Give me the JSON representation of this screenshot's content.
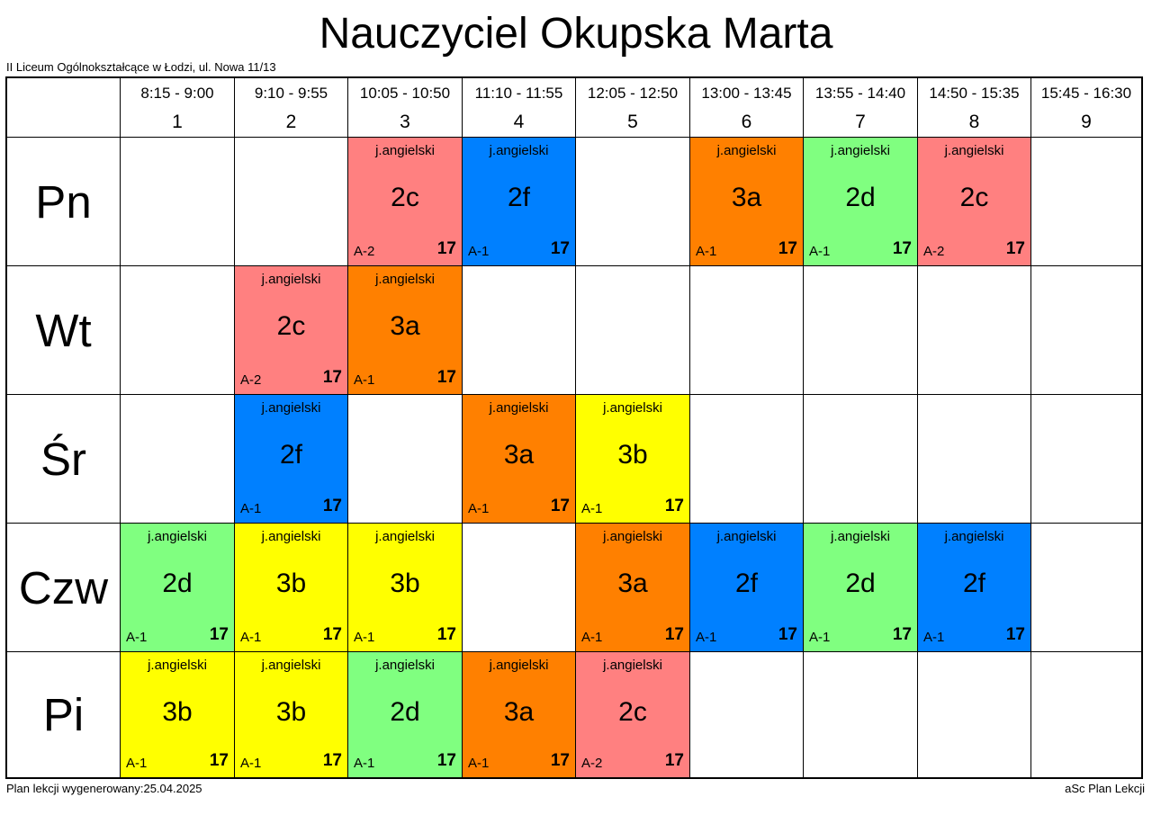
{
  "title": "Nauczyciel Okupska Marta",
  "school": "II Liceum Ogólnokształcące w Łodzi, ul. Nowa 11/13",
  "footer_left": "Plan lekcji wygenerowany:25.04.2025",
  "footer_right": "aSc Plan Lekcji",
  "colors": {
    "2c": "#ff8080",
    "2f": "#0080ff",
    "3a": "#ff8000",
    "2d": "#80ff80",
    "3b": "#ffff00"
  },
  "periods": [
    {
      "time": "8:15 - 9:00",
      "num": "1"
    },
    {
      "time": "9:10 - 9:55",
      "num": "2"
    },
    {
      "time": "10:05 - 10:50",
      "num": "3"
    },
    {
      "time": "11:10 - 11:55",
      "num": "4"
    },
    {
      "time": "12:05 - 12:50",
      "num": "5"
    },
    {
      "time": "13:00 - 13:45",
      "num": "6"
    },
    {
      "time": "13:55 - 14:40",
      "num": "7"
    },
    {
      "time": "14:50 - 15:35",
      "num": "8"
    },
    {
      "time": "15:45 - 16:30",
      "num": "9"
    }
  ],
  "days": [
    {
      "name": "Pn",
      "lessons": [
        null,
        null,
        {
          "subject": "j.angielski",
          "class": "2c",
          "room": "A-2",
          "number": "17"
        },
        {
          "subject": "j.angielski",
          "class": "2f",
          "room": "A-1",
          "number": "17"
        },
        null,
        {
          "subject": "j.angielski",
          "class": "3a",
          "room": "A-1",
          "number": "17"
        },
        {
          "subject": "j.angielski",
          "class": "2d",
          "room": "A-1",
          "number": "17"
        },
        {
          "subject": "j.angielski",
          "class": "2c",
          "room": "A-2",
          "number": "17"
        },
        null
      ]
    },
    {
      "name": "Wt",
      "lessons": [
        null,
        {
          "subject": "j.angielski",
          "class": "2c",
          "room": "A-2",
          "number": "17"
        },
        {
          "subject": "j.angielski",
          "class": "3a",
          "room": "A-1",
          "number": "17"
        },
        null,
        null,
        null,
        null,
        null,
        null
      ]
    },
    {
      "name": "Śr",
      "lessons": [
        null,
        {
          "subject": "j.angielski",
          "class": "2f",
          "room": "A-1",
          "number": "17"
        },
        null,
        {
          "subject": "j.angielski",
          "class": "3a",
          "room": "A-1",
          "number": "17"
        },
        {
          "subject": "j.angielski",
          "class": "3b",
          "room": "A-1",
          "number": "17"
        },
        null,
        null,
        null,
        null
      ]
    },
    {
      "name": "Czw",
      "lessons": [
        {
          "subject": "j.angielski",
          "class": "2d",
          "room": "A-1",
          "number": "17"
        },
        {
          "subject": "j.angielski",
          "class": "3b",
          "room": "A-1",
          "number": "17"
        },
        {
          "subject": "j.angielski",
          "class": "3b",
          "room": "A-1",
          "number": "17"
        },
        null,
        {
          "subject": "j.angielski",
          "class": "3a",
          "room": "A-1",
          "number": "17"
        },
        {
          "subject": "j.angielski",
          "class": "2f",
          "room": "A-1",
          "number": "17"
        },
        {
          "subject": "j.angielski",
          "class": "2d",
          "room": "A-1",
          "number": "17"
        },
        {
          "subject": "j.angielski",
          "class": "2f",
          "room": "A-1",
          "number": "17"
        },
        null
      ]
    },
    {
      "name": "Pi",
      "lessons": [
        {
          "subject": "j.angielski",
          "class": "3b",
          "room": "A-1",
          "number": "17"
        },
        {
          "subject": "j.angielski",
          "class": "3b",
          "room": "A-1",
          "number": "17"
        },
        {
          "subject": "j.angielski",
          "class": "2d",
          "room": "A-1",
          "number": "17"
        },
        {
          "subject": "j.angielski",
          "class": "3a",
          "room": "A-1",
          "number": "17"
        },
        {
          "subject": "j.angielski",
          "class": "2c",
          "room": "A-2",
          "number": "17"
        },
        null,
        null,
        null,
        null
      ]
    }
  ]
}
